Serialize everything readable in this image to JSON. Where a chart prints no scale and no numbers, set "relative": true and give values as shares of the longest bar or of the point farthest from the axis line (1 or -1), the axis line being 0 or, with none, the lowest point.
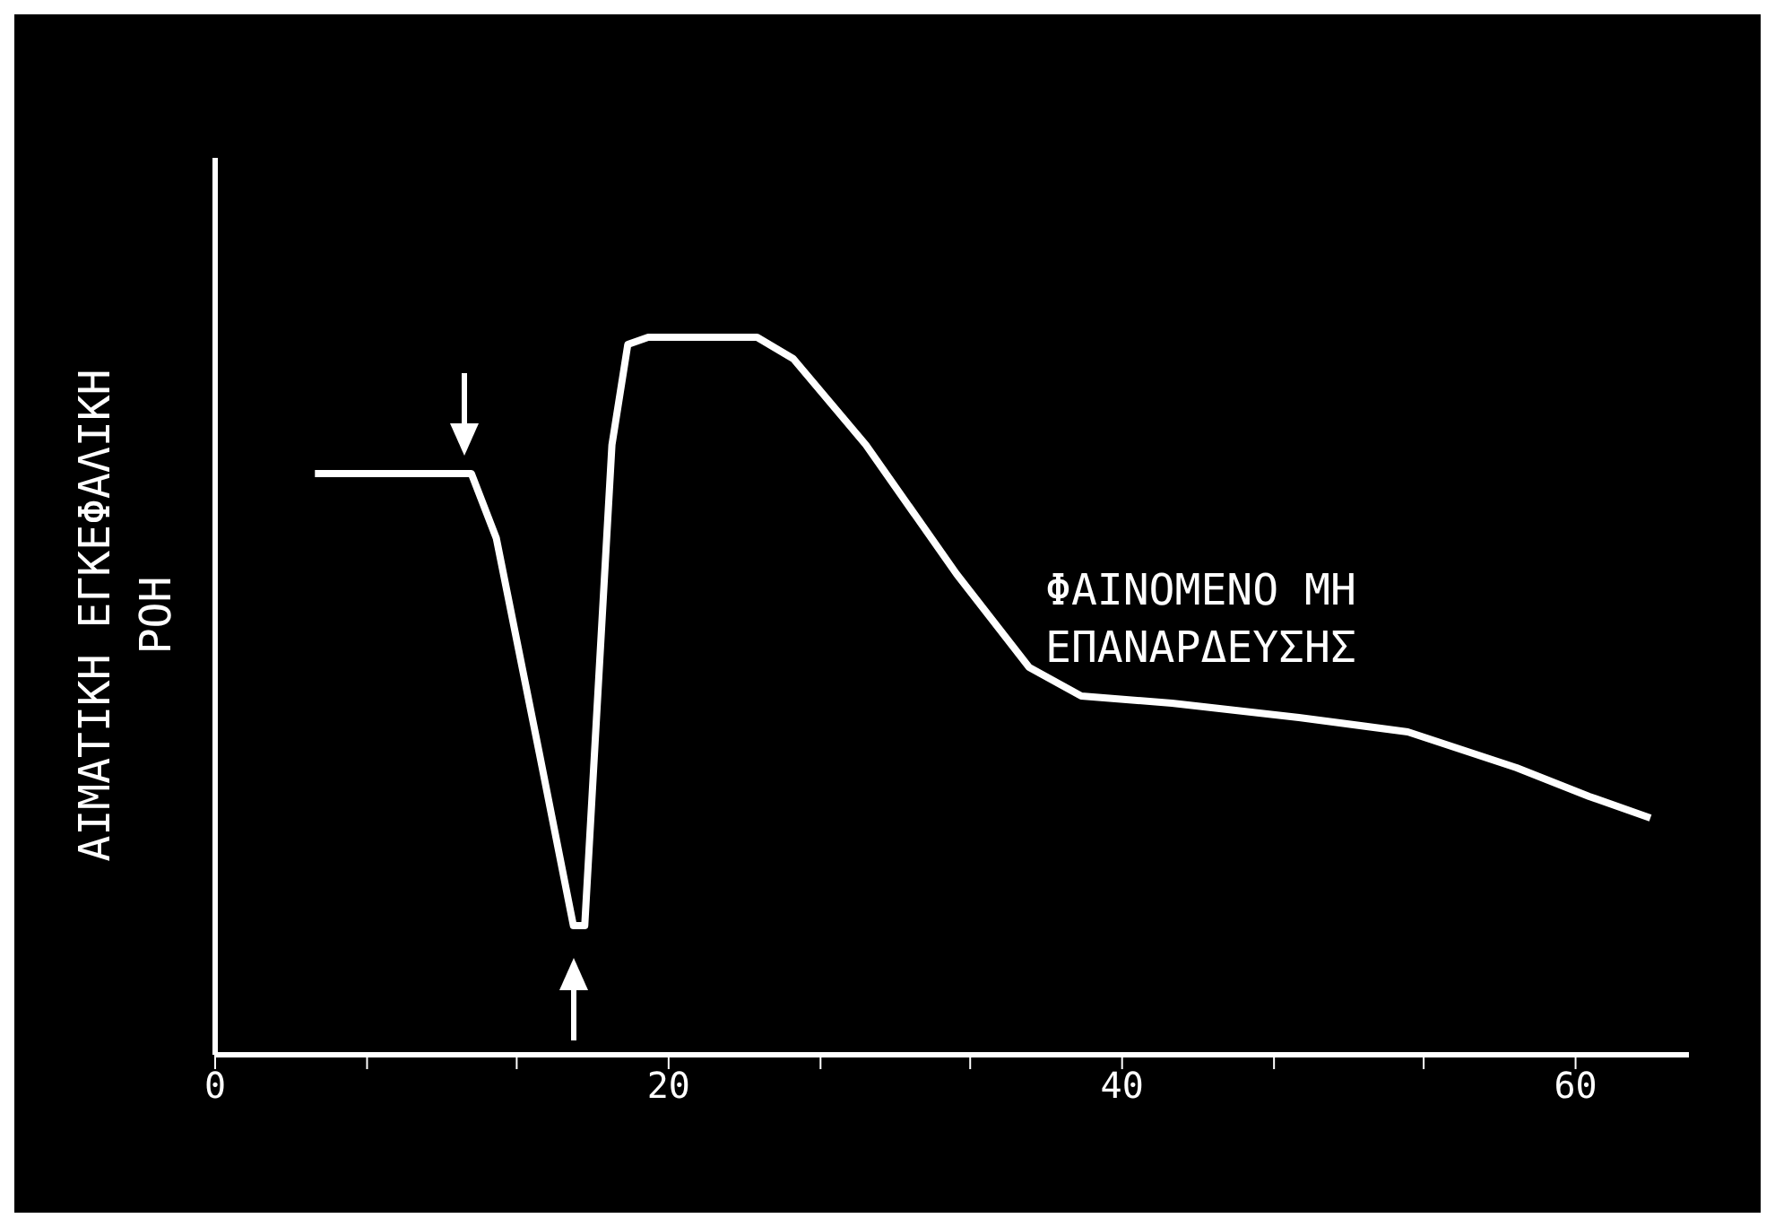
{
  "chart_data": {
    "type": "line",
    "ylabel": "ΑΙΜΑΤΙΚΗ ΕΓΚΕΦΑΛΙΚΗ\nΡΟΗ",
    "annotations": [
      "ΦΑΙΝΟΜΕΝΟ ΜΗ\nΕΠΑΝΑΡΔΕΥΣΗΣ"
    ],
    "relative": true,
    "x": [
      4.4,
      11.3,
      12.4,
      14.3,
      15.8,
      16.3,
      17.5,
      18.2,
      19.1,
      23.9,
      25.5,
      28.7,
      32.7,
      35.9,
      38.2,
      42.2,
      47.8,
      52.6,
      57.4,
      60.6,
      63.3
    ],
    "series": [
      {
        "color": "#ffffff",
        "values": [
          0.81,
          0.81,
          0.72,
          0.42,
          0.18,
          0.18,
          0.85,
          0.99,
          1,
          1,
          0.97,
          0.85,
          0.67,
          0.54,
          0.5,
          0.49,
          0.47,
          0.45,
          0.4,
          0.36,
          0.33
        ]
      }
    ],
    "xlim": [
      0,
      65
    ],
    "xticks": [
      0,
      {
        "value": 6.7,
        "label": null
      },
      {
        "value": 13.3,
        "label": null
      },
      20,
      {
        "value": 26.7,
        "label": null
      },
      {
        "value": 33.3,
        "label": null
      },
      40,
      {
        "value": 46.7,
        "label": null
      },
      {
        "value": 53.3,
        "label": null
      },
      60
    ],
    "grid": false,
    "legend": false,
    "marker": "none",
    "line_style": "solid"
  }
}
